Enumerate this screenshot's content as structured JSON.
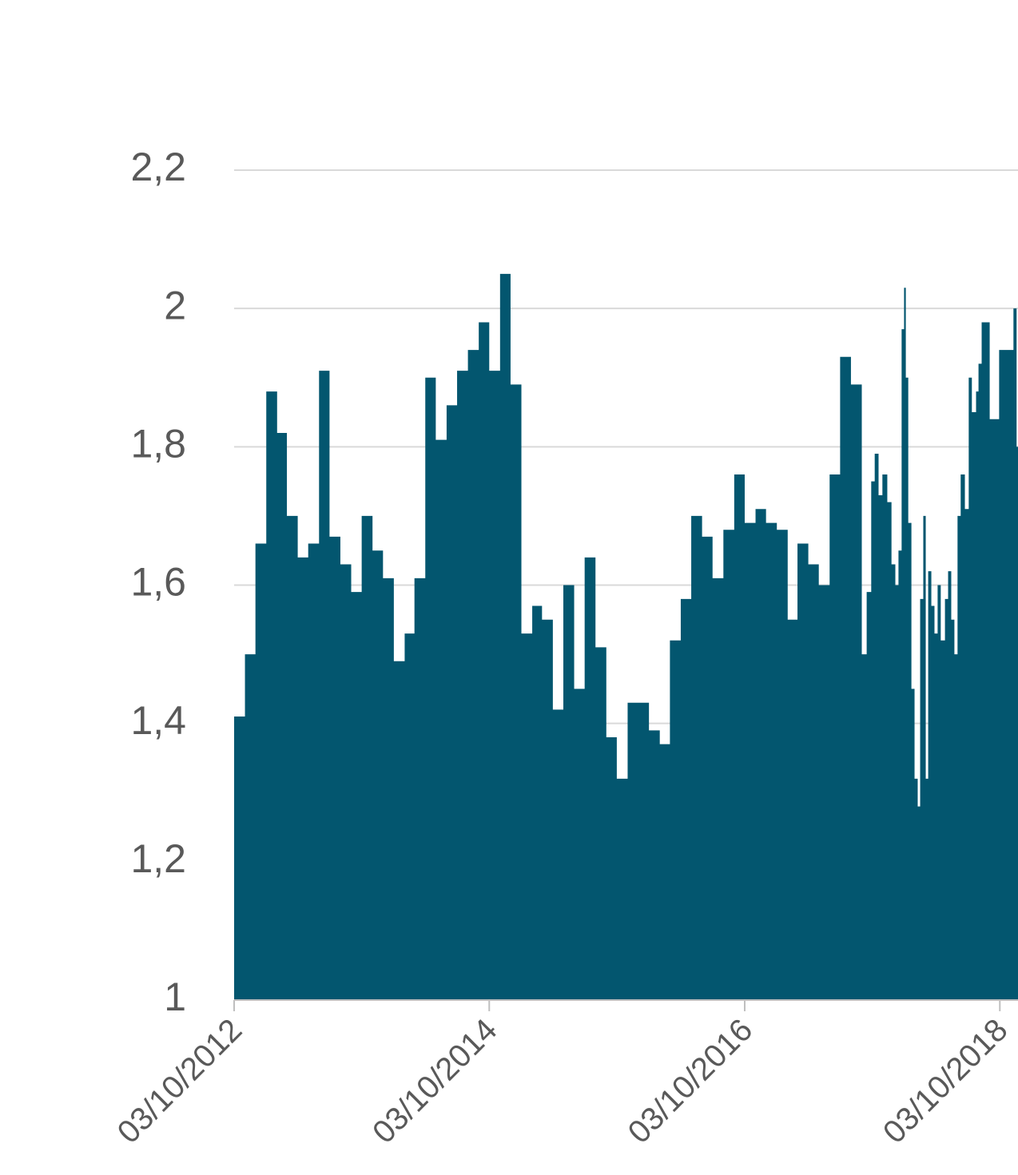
{
  "chart_data": {
    "type": "area",
    "x": [
      "2012-10-03",
      "2012-11-03",
      "2012-12-03",
      "2013-01-03",
      "2013-02-03",
      "2013-03-03",
      "2013-04-03",
      "2013-05-03",
      "2013-06-03",
      "2013-07-03",
      "2013-08-03",
      "2013-09-03",
      "2013-10-03",
      "2013-11-03",
      "2013-12-03",
      "2014-01-03",
      "2014-02-03",
      "2014-03-03",
      "2014-04-03",
      "2014-05-03",
      "2014-06-03",
      "2014-07-03",
      "2014-08-03",
      "2014-09-03",
      "2014-10-03",
      "2014-11-03",
      "2014-12-03",
      "2015-01-03",
      "2015-02-03",
      "2015-03-03",
      "2015-04-03",
      "2015-05-03",
      "2015-06-03",
      "2015-07-03",
      "2015-08-03",
      "2015-09-03",
      "2015-10-03",
      "2015-11-03",
      "2015-12-03",
      "2016-01-03",
      "2016-02-03",
      "2016-03-03",
      "2016-04-03",
      "2016-05-03",
      "2016-06-03",
      "2016-07-03",
      "2016-08-03",
      "2016-09-03",
      "2016-10-03",
      "2016-11-03",
      "2016-12-03",
      "2017-01-03",
      "2017-02-03",
      "2017-03-03",
      "2017-04-03",
      "2017-05-03",
      "2017-06-03",
      "2017-07-03",
      "2017-08-03",
      "2017-09-03",
      "2017-09-17",
      "2017-09-30",
      "2017-10-10",
      "2017-10-21",
      "2017-11-01",
      "2017-11-15",
      "2017-11-27",
      "2017-12-08",
      "2017-12-17",
      "2017-12-26",
      "2018-01-02",
      "2018-01-07",
      "2018-01-14",
      "2018-01-23",
      "2018-02-01",
      "2018-02-10",
      "2018-02-17",
      "2018-02-26",
      "2018-03-05",
      "2018-03-12",
      "2018-03-21",
      "2018-03-30",
      "2018-04-08",
      "2018-04-17",
      "2018-04-29",
      "2018-05-08",
      "2018-05-17",
      "2018-05-26",
      "2018-06-04",
      "2018-06-13",
      "2018-06-25",
      "2018-07-06",
      "2018-07-15",
      "2018-07-27",
      "2018-08-03",
      "2018-08-12",
      "2018-09-04",
      "2018-10-01",
      "2018-11-02",
      "2018-11-11",
      "2018-11-20"
    ],
    "values": [
      1.41,
      1.5,
      1.66,
      1.88,
      1.82,
      1.7,
      1.64,
      1.66,
      1.91,
      1.67,
      1.63,
      1.59,
      1.7,
      1.65,
      1.61,
      1.49,
      1.53,
      1.61,
      1.9,
      1.81,
      1.86,
      1.91,
      1.94,
      1.98,
      1.91,
      2.05,
      1.89,
      1.53,
      1.57,
      1.55,
      1.42,
      1.6,
      1.45,
      1.64,
      1.51,
      1.38,
      1.32,
      1.43,
      1.43,
      1.39,
      1.37,
      1.52,
      1.58,
      1.7,
      1.67,
      1.61,
      1.68,
      1.76,
      1.69,
      1.71,
      1.69,
      1.68,
      1.55,
      1.66,
      1.63,
      1.6,
      1.76,
      1.93,
      1.89,
      1.5,
      1.59,
      1.75,
      1.79,
      1.73,
      1.76,
      1.72,
      1.63,
      1.6,
      1.65,
      1.97,
      2.03,
      1.9,
      1.69,
      1.45,
      1.32,
      1.28,
      1.58,
      1.7,
      1.32,
      1.62,
      1.57,
      1.53,
      1.6,
      1.52,
      1.58,
      1.62,
      1.55,
      1.5,
      1.7,
      1.76,
      1.71,
      1.9,
      1.85,
      1.88,
      1.92,
      1.98,
      1.84,
      1.94,
      1.94,
      2.0,
      1.8
    ],
    "color": "#03566f",
    "xlim": [
      "2012-10-03",
      "2018-11-24"
    ],
    "xticks": [
      {
        "value": "2012-10-03",
        "label": "03/10/2012"
      },
      {
        "value": "2014-10-03",
        "label": "03/10/2014"
      },
      {
        "value": "2016-10-03",
        "label": "03/10/2016"
      },
      {
        "value": "2018-10-03",
        "label": "03/10/2018"
      }
    ],
    "ylim": [
      1,
      2.2
    ],
    "yticks": [
      1,
      {
        "value": 1.2,
        "label": "1,2"
      },
      {
        "value": 1.4,
        "label": "1,4"
      },
      {
        "value": 1.6,
        "label": "1,6"
      },
      {
        "value": 1.8,
        "label": "1,8"
      },
      2,
      {
        "value": 2.2,
        "label": "2,2"
      }
    ],
    "grid": true
  }
}
